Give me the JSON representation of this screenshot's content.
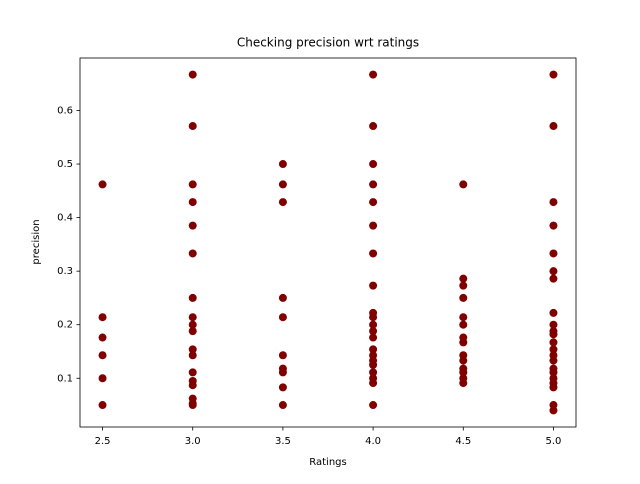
{
  "chart_data": {
    "type": "scatter",
    "title": "Checking precision wrt ratings",
    "x_label": "Ratings",
    "y_label": "precision",
    "xlim": [
      2.375,
      5.125
    ],
    "ylim": [
      0.009,
      0.698
    ],
    "xticks": [
      2.5,
      {
        "value": 3,
        "label": "3.0"
      },
      3.5,
      {
        "value": 4,
        "label": "4.0"
      },
      4.5,
      {
        "value": 5,
        "label": "5.0"
      }
    ],
    "yticks": [
      0.1,
      0.2,
      0.3,
      0.4,
      0.5,
      0.6
    ],
    "series": [
      {
        "color": "#800000",
        "x": [
          2.5,
          2.5,
          2.5,
          2.5,
          2.5,
          2.5,
          3,
          3,
          3,
          3,
          3,
          3,
          3,
          3,
          3,
          3,
          3,
          3,
          3,
          3,
          3,
          3,
          3,
          3,
          3.5,
          3.5,
          3.5,
          3.5,
          3.5,
          3.5,
          3.5,
          3.5,
          3.5,
          3.5,
          4,
          4,
          4,
          4,
          4,
          4,
          4,
          4,
          4,
          4,
          4,
          4,
          4,
          4,
          4,
          4,
          4,
          4,
          4,
          4,
          4,
          4.5,
          4.5,
          4.5,
          4.5,
          4.5,
          4.5,
          4.5,
          4.5,
          4.5,
          4.5,
          4.5,
          4.5,
          4.5,
          4.5,
          5,
          5,
          5,
          5,
          5,
          5,
          5,
          5,
          5,
          5,
          5,
          5,
          5,
          5,
          5,
          5,
          5,
          5,
          5,
          5,
          5,
          5
        ],
        "values": [
          0.462,
          0.214,
          0.176,
          0.143,
          0.1,
          0.05,
          0.667,
          0.571,
          0.462,
          0.429,
          0.385,
          0.333,
          0.25,
          0.214,
          0.2,
          0.188,
          0.154,
          0.143,
          0.111,
          0.095,
          0.087,
          0.062,
          0.05,
          0.053,
          0.5,
          0.462,
          0.429,
          0.25,
          0.214,
          0.143,
          0.118,
          0.111,
          0.083,
          0.05,
          0.667,
          0.571,
          0.5,
          0.462,
          0.429,
          0.385,
          0.333,
          0.273,
          0.222,
          0.214,
          0.2,
          0.188,
          0.176,
          0.154,
          0.143,
          0.133,
          0.125,
          0.111,
          0.1,
          0.091,
          0.05,
          0.462,
          0.286,
          0.273,
          0.25,
          0.214,
          0.2,
          0.176,
          0.167,
          0.143,
          0.133,
          0.118,
          0.111,
          0.1,
          0.091,
          0.667,
          0.571,
          0.429,
          0.385,
          0.333,
          0.3,
          0.286,
          0.222,
          0.2,
          0.188,
          0.182,
          0.167,
          0.154,
          0.143,
          0.133,
          0.118,
          0.111,
          0.1,
          0.091,
          0.083,
          0.05,
          0.04
        ]
      }
    ]
  }
}
